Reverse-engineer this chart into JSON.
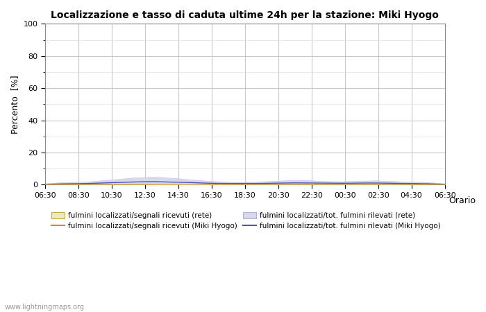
{
  "title": "Localizzazione e tasso di caduta ultime 24h per la stazione: Miki Hyogo",
  "ylabel": "Percento  [%]",
  "xlabel": "Orario",
  "ylim": [
    0,
    100
  ],
  "yticks_major": [
    0,
    20,
    40,
    60,
    80,
    100
  ],
  "yticks_minor": [
    10,
    30,
    50,
    70,
    90
  ],
  "x_labels": [
    "06:30",
    "08:30",
    "10:30",
    "12:30",
    "14:30",
    "16:30",
    "18:30",
    "20:30",
    "22:30",
    "00:30",
    "02:30",
    "04:30",
    "06:30"
  ],
  "background_color": "#ffffff",
  "plot_bg_color": "#ffffff",
  "grid_major_color": "#c8c8c8",
  "grid_minor_color": "#e0e0e0",
  "watermark": "www.lightningmaps.org",
  "fill_rete_color": "#d8d8f0",
  "fill_rete_edge": "#b0b0d8",
  "fill_segnali_color": "#f0e8c0",
  "fill_segnali_edge": "#d4a840",
  "line_miki_tot_color": "#5050b8",
  "line_miki_seg_color": "#c89020",
  "leg_patch_segnali_color": "#f0e8c0",
  "leg_patch_segnali_edge": "#c8a840",
  "leg_patch_tot_color": "#d8d8f0",
  "leg_patch_tot_edge": "#b0b0d8",
  "leg_line_segnali_color": "#c89020",
  "leg_line_tot_color": "#5050b8",
  "leg_label_segnali_rete": "fulmini localizzati/segnali ricevuti (rete)",
  "leg_label_segnali_miki": "fulmini localizzati/segnali ricevuti (Miki Hyogo)",
  "leg_label_tot_rete": "fulmini localizzati/tot. fulmini rilevati (rete)",
  "leg_label_tot_miki": "fulmini localizzati/tot. fulmini rilevati (Miki Hyogo)"
}
